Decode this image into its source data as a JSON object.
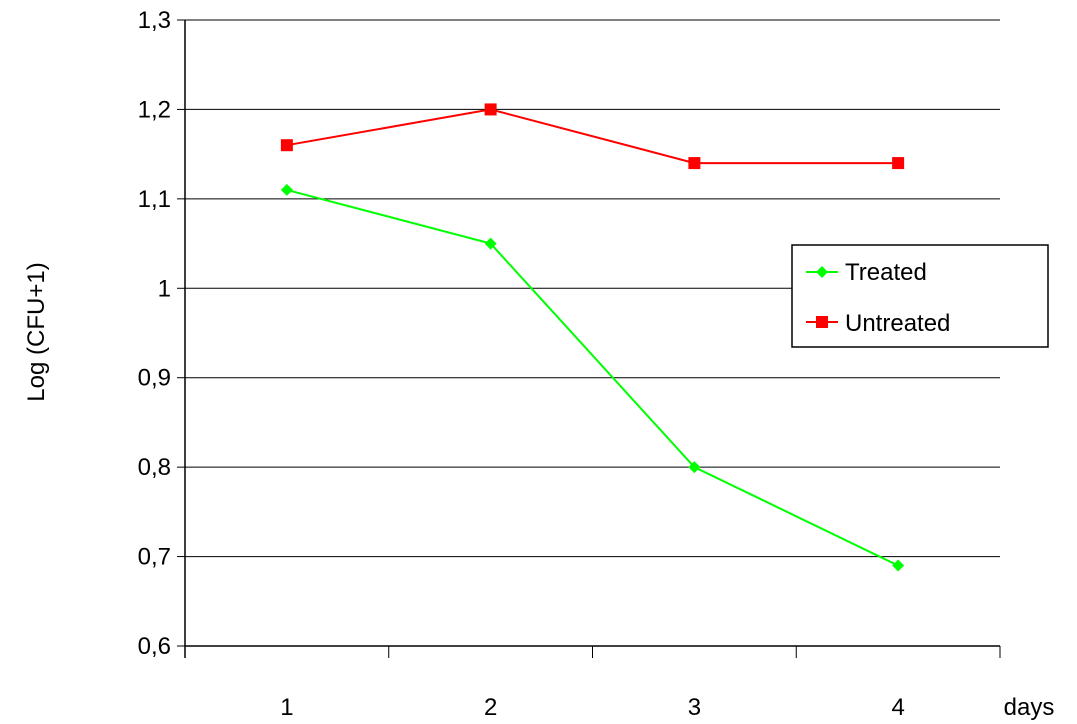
{
  "chart_data": {
    "type": "line",
    "title": "",
    "xlabel": "days",
    "ylabel": "Log (CFU+1)",
    "categories": [
      "1",
      "2",
      "3",
      "4"
    ],
    "ylim": [
      0.6,
      1.3
    ],
    "yticks": [
      "0,6",
      "0,7",
      "0,8",
      "0,9",
      "1",
      "1,1",
      "1,2",
      "1,3"
    ],
    "grid": "horizontal",
    "legend_position": "right",
    "series": [
      {
        "name": "Treated",
        "values": [
          1.11,
          1.05,
          0.8,
          0.69
        ],
        "color": "#00ff00",
        "marker": "diamond"
      },
      {
        "name": "Untreated",
        "values": [
          1.16,
          1.2,
          1.14,
          1.14
        ],
        "color": "#ff0000",
        "marker": "square"
      }
    ]
  }
}
